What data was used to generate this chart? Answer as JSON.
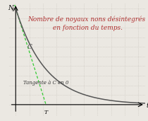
{
  "title": "Nombre de noyaux nons désintegrés\n en fonction du temps.",
  "title_color": "#b03030",
  "title_fontsize": 6.5,
  "title_style": "italic",
  "title_family": "serif",
  "curve_color": "#555555",
  "tangent_color": "#33cc33",
  "tangent_label": "Tangente à C en 0",
  "tangent_label_fontsize": 5.0,
  "curve_label": "C",
  "curve_label_fontsize": 6.5,
  "N0_label": "N",
  "x_label": "t",
  "T_label": "T",
  "background_color": "#ebe8e2",
  "grid_color": "#c8c4bc",
  "decay_lambda": 0.45,
  "x_max": 9.5,
  "y_max": 1.05
}
